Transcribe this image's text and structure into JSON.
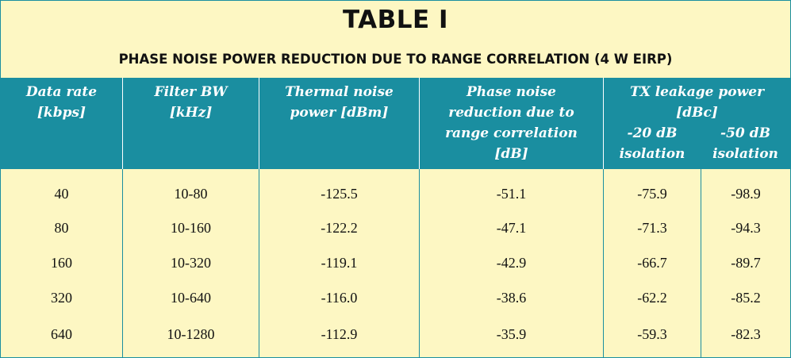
{
  "title": "TABLE I",
  "subtitle": "PHASE NOISE POWER REDUCTION DUE TO RANGE CORRELATION (4 W EIRP)",
  "headers": {
    "data_rate": [
      "Data rate",
      "[kbps]"
    ],
    "filter_bw": [
      "Filter BW",
      "[kHz]"
    ],
    "thermal": [
      "Thermal noise",
      "power [dBm]"
    ],
    "phase": [
      "Phase noise",
      "reduction due to",
      "range correlation",
      "[dB]"
    ],
    "tx_group": [
      "TX leakage power",
      "[dBc]"
    ],
    "iso20": [
      "-20 dB",
      "isolation"
    ],
    "iso50": [
      "-50 dB",
      "isolation"
    ]
  },
  "rows": [
    [
      "40",
      "10-80",
      "-125.5",
      "-51.1",
      "-75.9",
      "-98.9"
    ],
    [
      "80",
      "10-160",
      "-122.2",
      "-47.1",
      "-71.3",
      "-94.3"
    ],
    [
      "160",
      "10-320",
      "-119.1",
      "-42.9",
      "-66.7",
      "-89.7"
    ],
    [
      "320",
      "10-640",
      "-116.0",
      "-38.6",
      "-62.2",
      "-85.2"
    ],
    [
      "640",
      "10-1280",
      "-112.9",
      "-35.9",
      "-59.3",
      "-82.3"
    ]
  ]
}
